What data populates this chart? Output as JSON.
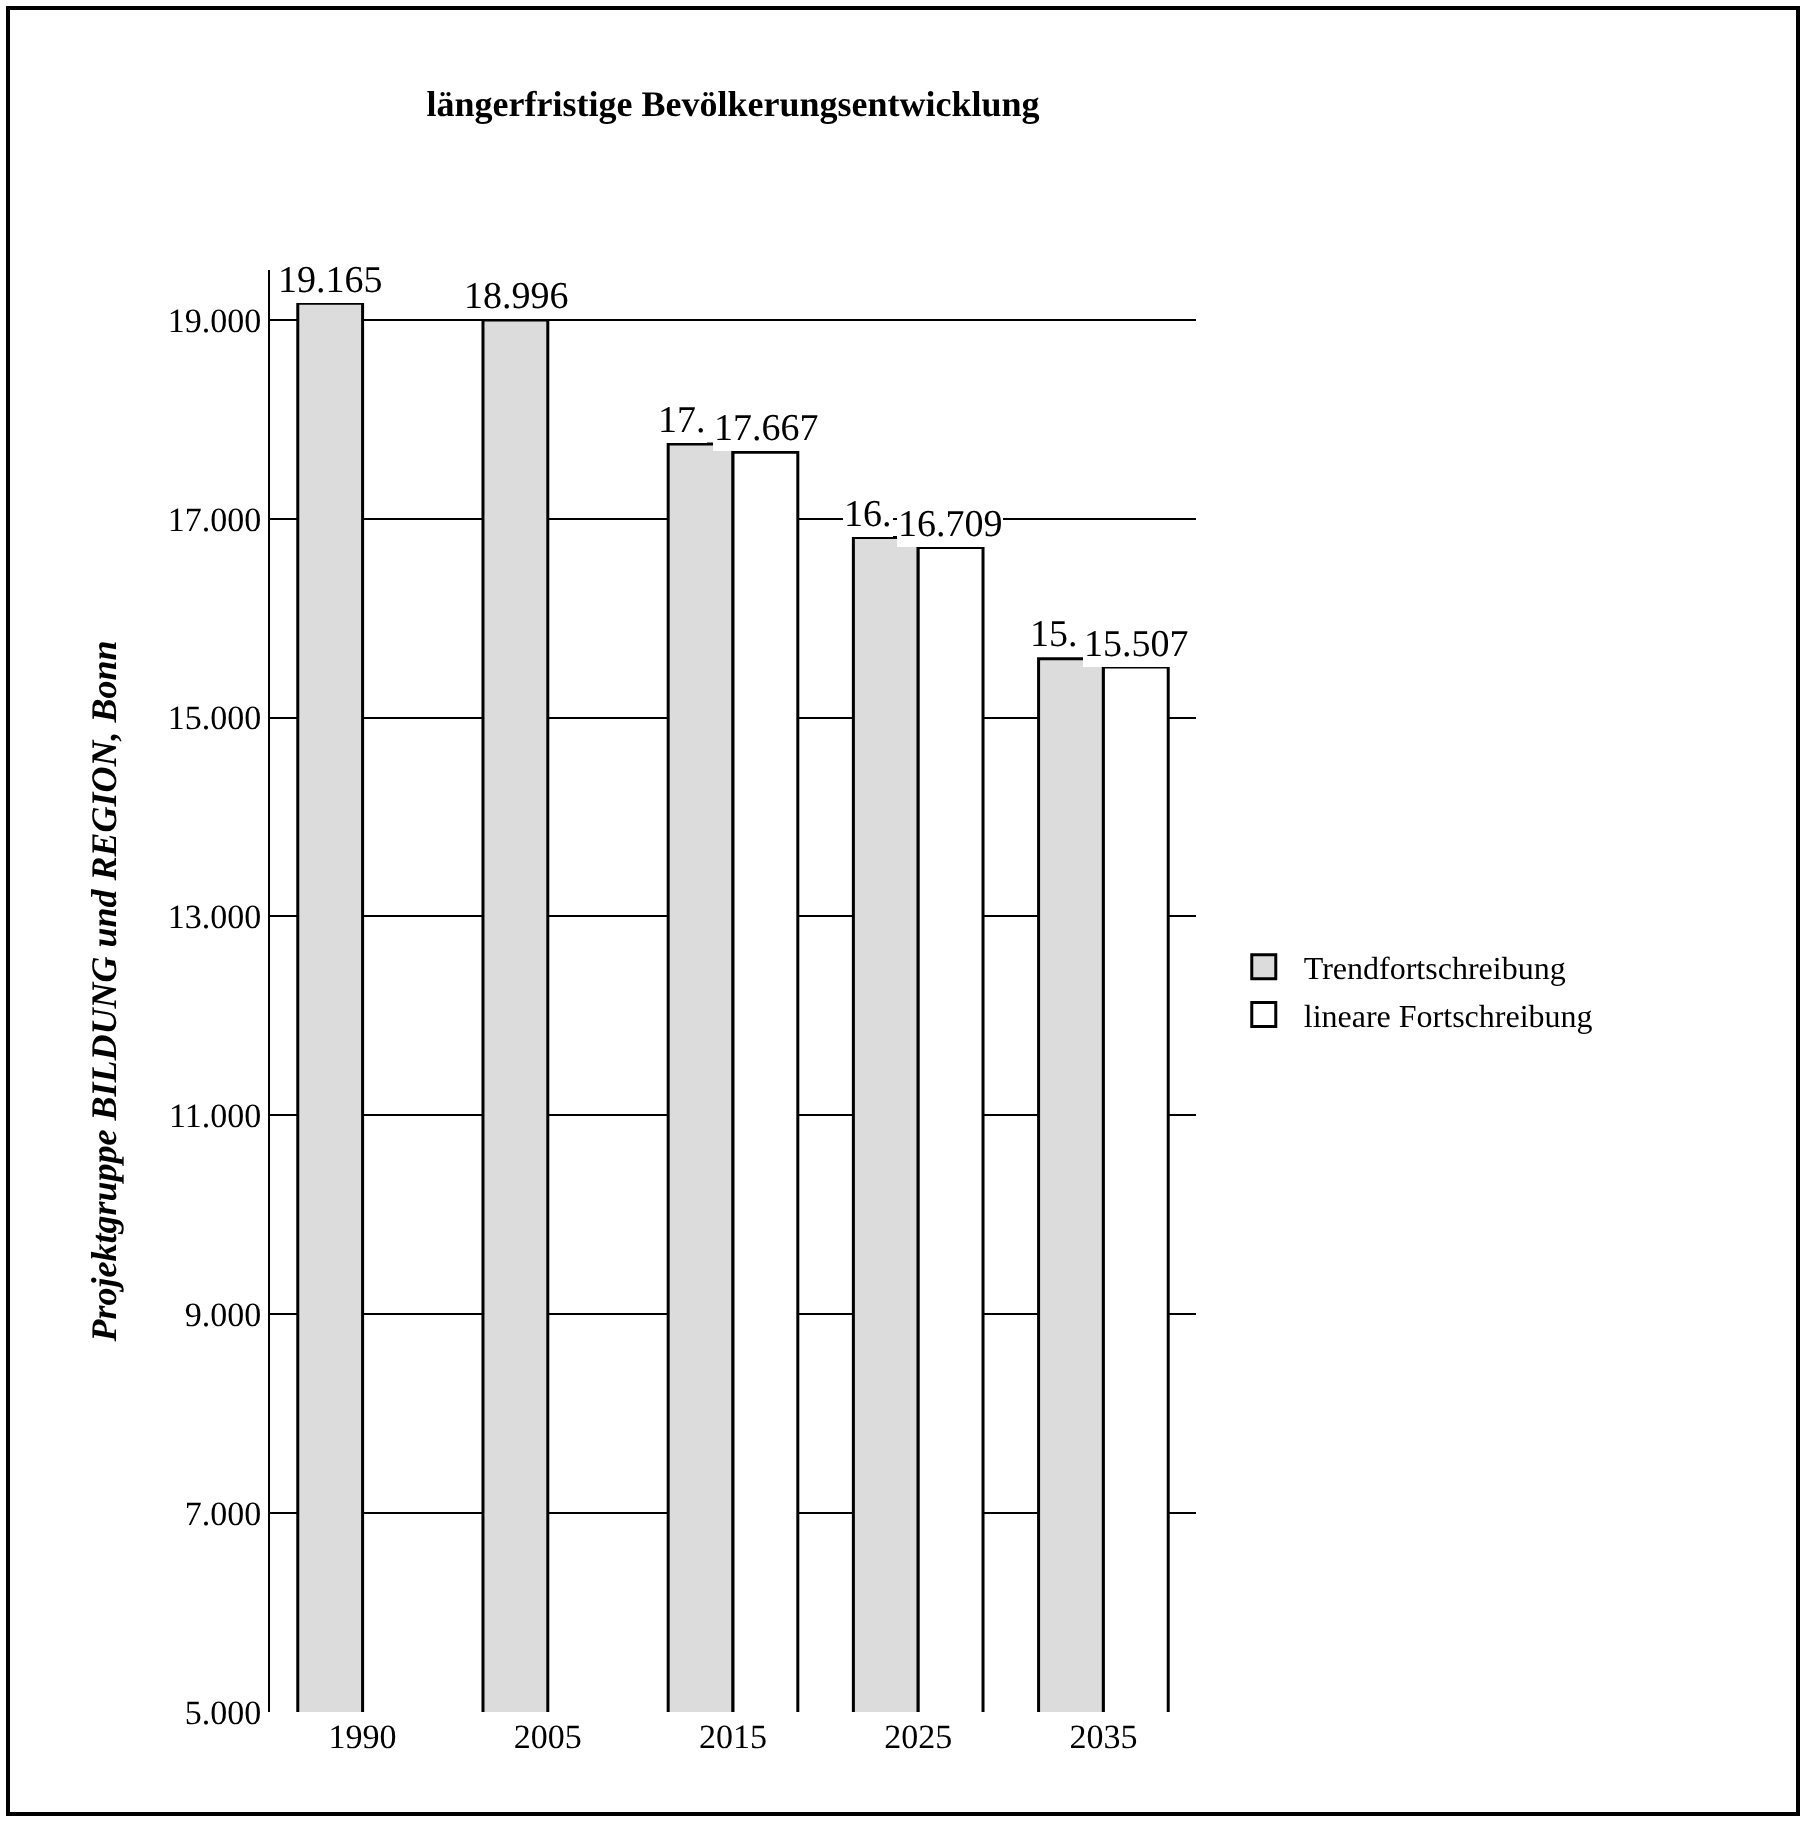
{
  "chart_data": {
    "type": "bar",
    "title": "längerfristige Bevölkerungsentwicklung",
    "ylabel": "Projektgruppe BILDUNG und REGION, Bonn",
    "categories": [
      "1990",
      "2005",
      "2015",
      "2025",
      "2035"
    ],
    "series": [
      {
        "name": "Trendfortschreibung",
        "color": "#dcdcdc",
        "values": [
          19165,
          18996,
          17750,
          16810,
          15590
        ],
        "value_labels": [
          "19.165",
          "18.996",
          null,
          null,
          null
        ]
      },
      {
        "name": "lineare Fortschreibung",
        "color": "#ffffff",
        "values": [
          null,
          null,
          17667,
          16709,
          15507
        ],
        "value_labels": [
          null,
          null,
          "17.667",
          "16.709",
          "15.507"
        ]
      }
    ],
    "ylim": [
      5000,
      19500
    ],
    "yticks": [
      {
        "value": 5000,
        "label": "5.000"
      },
      {
        "value": 7000,
        "label": "7.000"
      },
      {
        "value": 9000,
        "label": "9.000"
      },
      {
        "value": 11000,
        "label": "11.000"
      },
      {
        "value": 13000,
        "label": "13.000"
      },
      {
        "value": 15000,
        "label": "15.000"
      },
      {
        "value": 17000,
        "label": "17.000"
      },
      {
        "value": 19000,
        "label": "19.000"
      }
    ],
    "annotations": [
      {
        "text": "17.",
        "x": "2015",
        "y": 17750
      },
      {
        "text": "16.",
        "x": "2025",
        "y": 16810
      },
      {
        "text": "15.",
        "x": "2035",
        "y": 15590
      }
    ],
    "grid": "y",
    "legend": "right"
  }
}
